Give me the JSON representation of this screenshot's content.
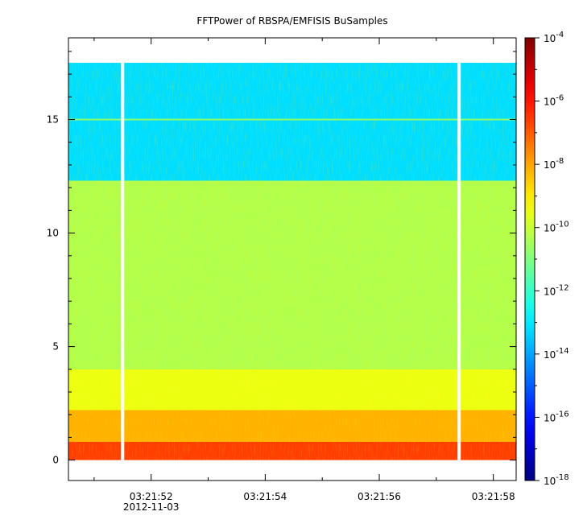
{
  "chart_data": {
    "type": "heatmap",
    "title": "FFTPower of RBSPA/EMFISIS  BuSamples",
    "date_label": "2012-11-03",
    "x_tick_labels": [
      "03:21:52",
      "03:21:54",
      "03:21:56",
      "03:21:58"
    ],
    "x_minor_ticks": [
      "03:21:51",
      "03:21:53",
      "03:21:55",
      "03:21:57"
    ],
    "x_range": [
      "03:21:50.55",
      "03:21:58.40"
    ],
    "y_ticks": [
      0,
      5,
      10,
      15
    ],
    "y_range": [
      -0.9,
      18.6
    ],
    "freq_max": 17.5,
    "colorbar": {
      "scale": "log",
      "range": [
        1e-18,
        0.0001
      ],
      "tick_labels": [
        {
          "base": "10",
          "exp": "-4",
          "value": 0.0001
        },
        {
          "base": "10",
          "exp": "-6",
          "value": 1e-06
        },
        {
          "base": "10",
          "exp": "-8",
          "value": 1e-08
        },
        {
          "base": "10",
          "exp": "-10",
          "value": 1e-10
        },
        {
          "base": "10",
          "exp": "-12",
          "value": 1e-12
        },
        {
          "base": "10",
          "exp": "-14",
          "value": 1e-14
        },
        {
          "base": "10",
          "exp": "-16",
          "value": 1e-16
        },
        {
          "base": "10",
          "exp": "-18",
          "value": 1e-18
        }
      ]
    },
    "data_gaps": [
      "03:21:51.50",
      "03:21:57.40"
    ],
    "bands": [
      {
        "y_from": 12.3,
        "y_to": 17.5,
        "level": -13.2
      },
      {
        "y_from": 4.0,
        "y_to": 12.3,
        "level": -10.3
      },
      {
        "y_from": 2.2,
        "y_to": 4.0,
        "level": -9.5
      },
      {
        "y_from": 0.8,
        "y_to": 2.2,
        "level": -8.2
      },
      {
        "y_from": 0.0,
        "y_to": 0.8,
        "level": -6.6
      }
    ],
    "line_feature": {
      "y": 15.0,
      "level": -10.8
    },
    "grid": false,
    "legend": "none"
  }
}
